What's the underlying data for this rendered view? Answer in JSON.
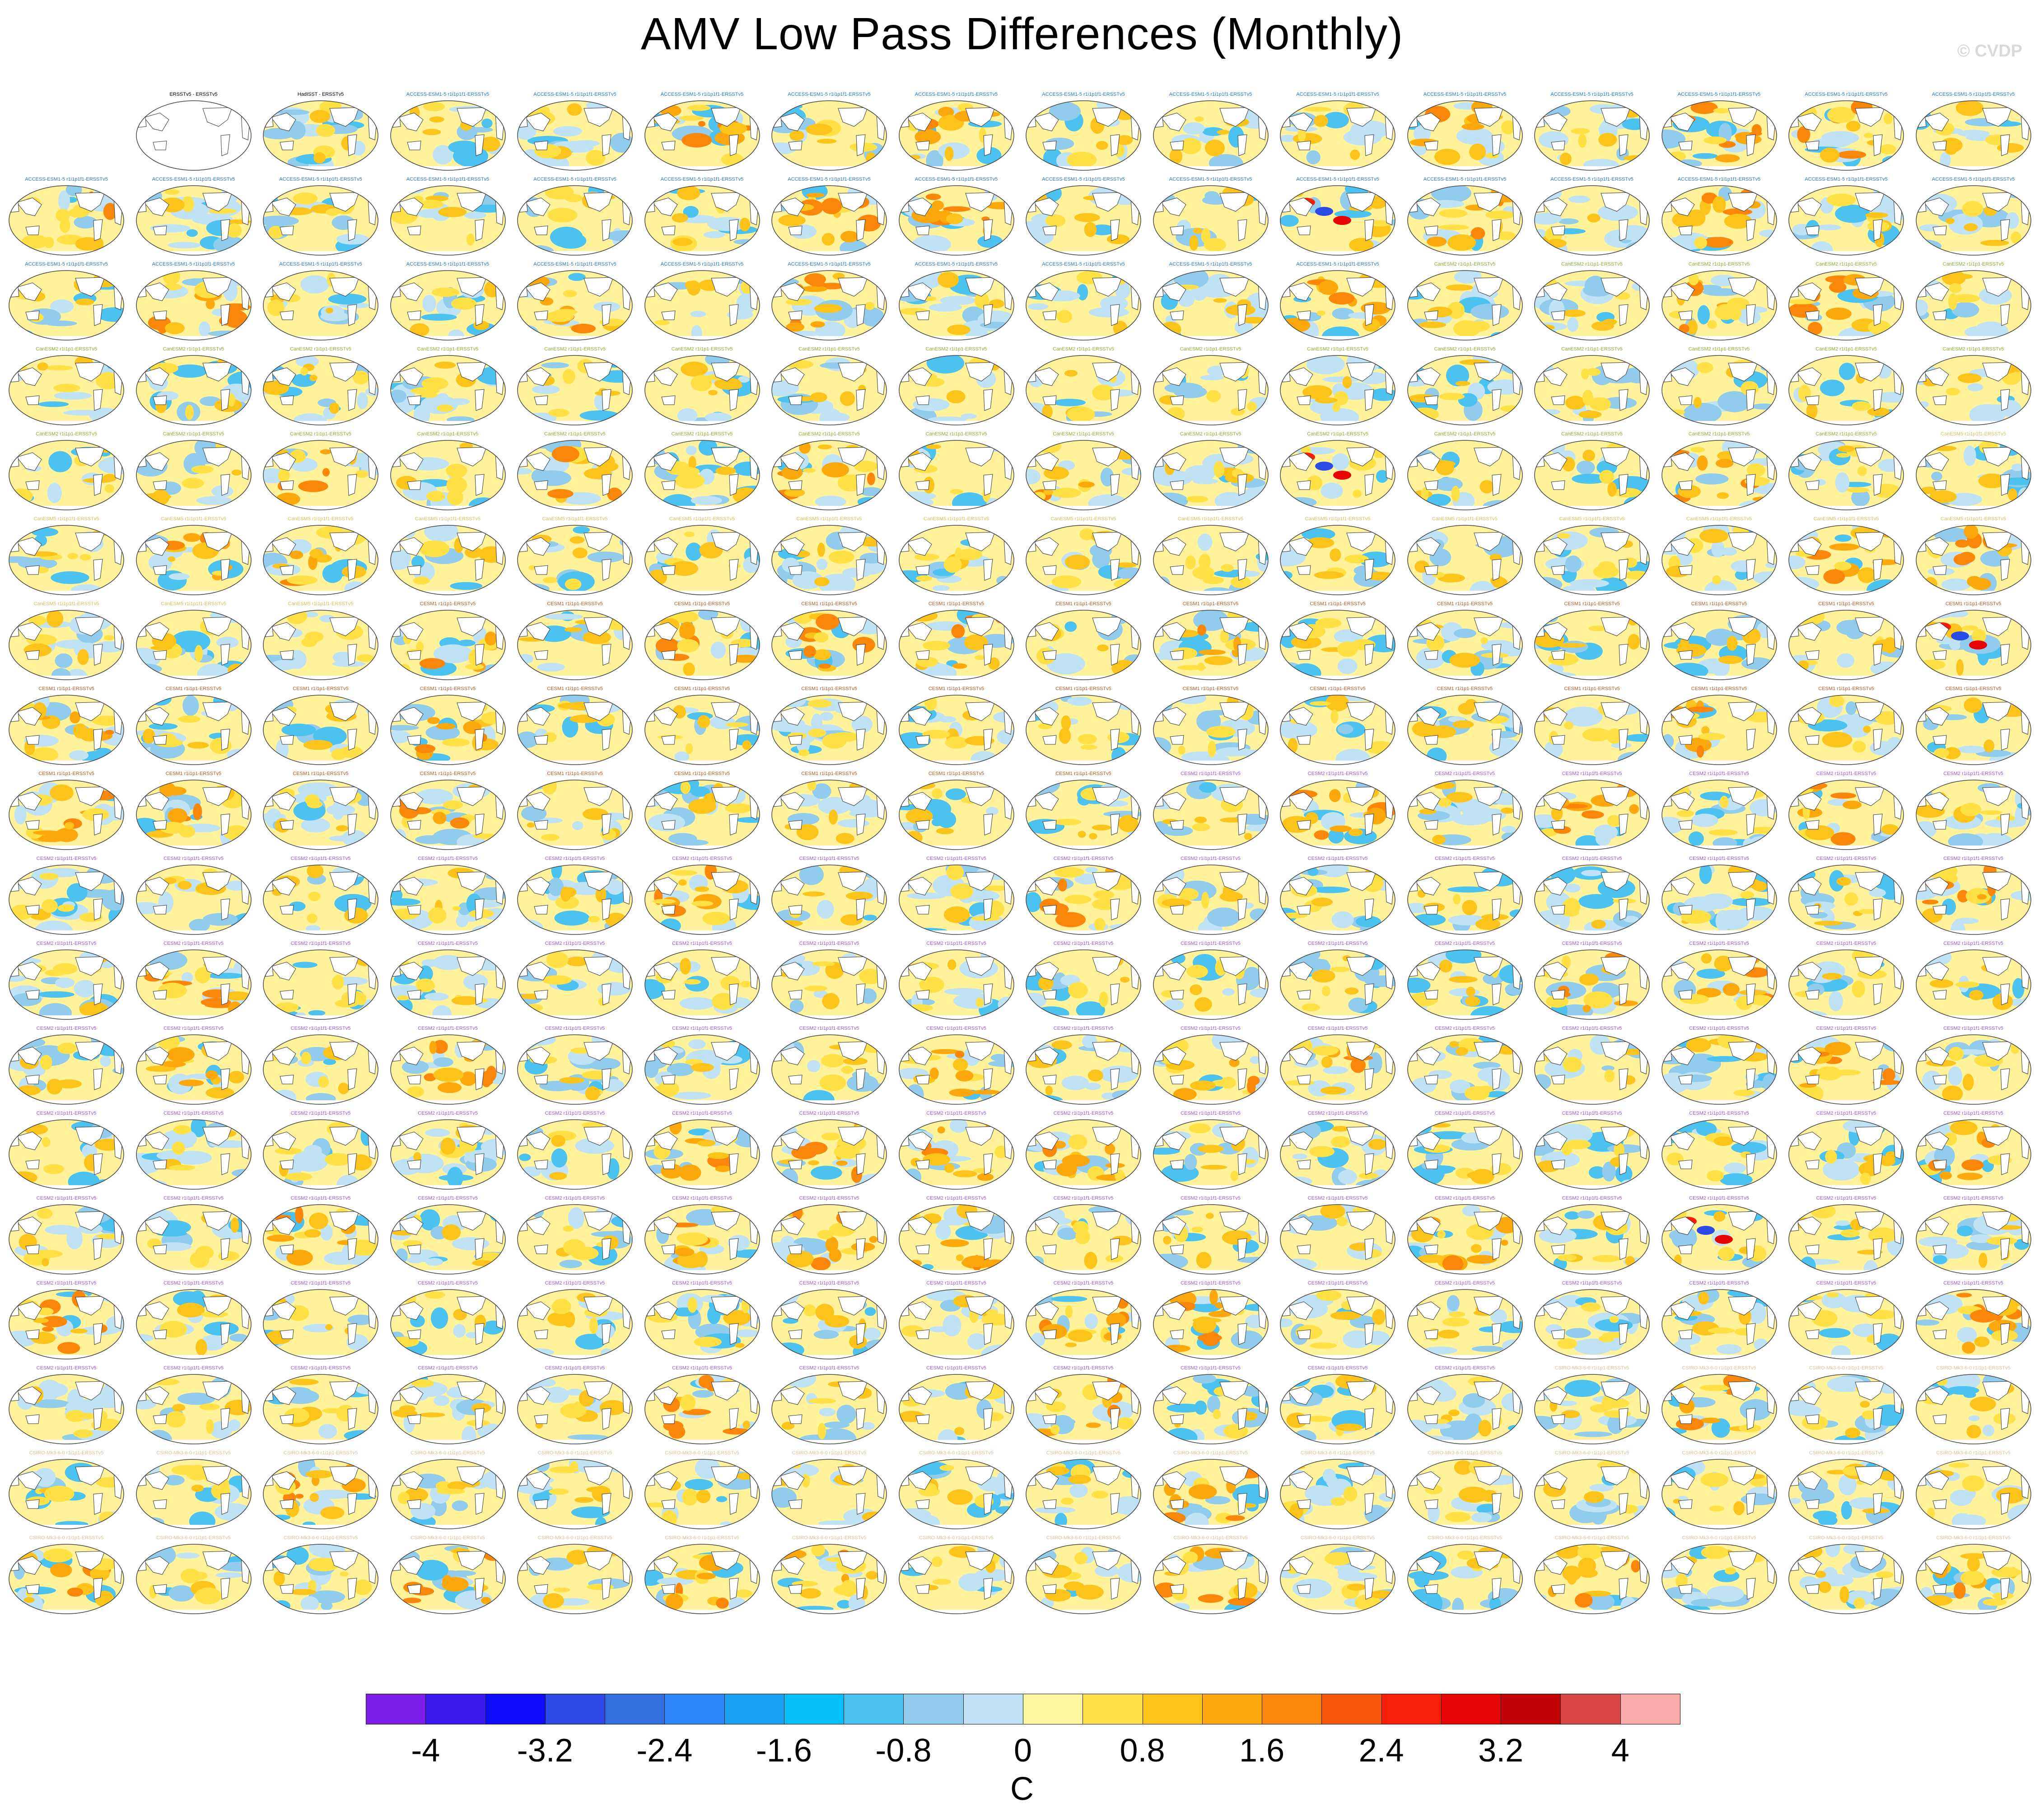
{
  "title": "AMV Low Pass Differences (Monthly)",
  "watermark": "© CVDP",
  "chart_data": {
    "type": "heatmap",
    "title": "AMV Low Pass Differences (Monthly)",
    "layout": "small multiples: 18 rows of global SST-difference maps (15 per row, 14 in the first row after the blank slot)",
    "units": "C",
    "colorbar": {
      "ticks": [
        "-4",
        "-3.2",
        "-2.4",
        "-1.6",
        "-0.8",
        "0",
        "0.8",
        "1.6",
        "2.4",
        "3.2",
        "4"
      ],
      "range": [
        -4.4,
        4.4
      ],
      "interval": 0.4,
      "colors": [
        "#7b1fe8",
        "#3d1af2",
        "#0d0dfa",
        "#2b4ae6",
        "#3270e0",
        "#2a87f5",
        "#1aa3f5",
        "#06bff7",
        "#4cc2f0",
        "#92ccec",
        "#bfe3f5",
        "#fff7a0",
        "#ffe045",
        "#fcc41a",
        "#fca80d",
        "#fb870a",
        "#f7560a",
        "#f81e08",
        "#e60404",
        "#c20404",
        "#d94646",
        "#fbaaaa"
      ]
    },
    "panels_first_row": [
      {
        "label": "ERSSTv5 - ERSSTv5",
        "color": "#000000",
        "reference": true
      },
      {
        "label": "HadISST - ERSSTv5",
        "color": "#000000"
      }
    ],
    "model_groups": [
      {
        "model": "ACCESS-ESM1-5",
        "label_color": "#2a7ab8",
        "sample_label": "ACCESS-ESM1-5 r1i1p1f1-ERSSTv5"
      },
      {
        "model": "CanESM2",
        "label_color": "#8bae2e",
        "sample_label": "CanESM2 r1i1p1-ERSSTv5"
      },
      {
        "model": "CanESM5",
        "label_color": "#cfc45a",
        "sample_label": "CanESM5 r1i1p1f1-ERSSTv5"
      },
      {
        "model": "CESM1",
        "label_color": "#b35a1f",
        "sample_label": "CESM1 r1i1p1-ERSSTv5"
      },
      {
        "model": "CESM2",
        "label_color": "#9b59d0",
        "sample_label": "CESM2 r1i1p1f1-ERSSTv5"
      },
      {
        "model": "CSIRO-Mk3-6-0",
        "label_color": "#d8c29a",
        "sample_label": "CSIRO-Mk3-6-0 r1i1p1-ERSSTv5"
      }
    ],
    "legend": "none"
  },
  "colorbar_unit": "C"
}
